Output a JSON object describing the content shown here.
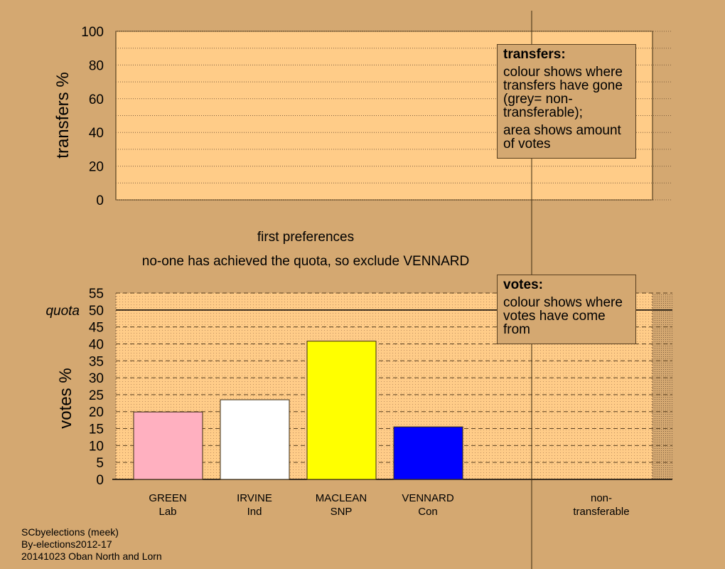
{
  "chart_data": [
    {
      "type": "bar",
      "ylabel": "transfers %",
      "ylim": [
        0,
        100
      ],
      "yticks": [
        0,
        20,
        40,
        60,
        80,
        100
      ],
      "categories": [],
      "values": []
    },
    {
      "type": "bar",
      "ylabel": "votes %",
      "ylim": [
        0,
        55
      ],
      "yticks": [
        0,
        5,
        10,
        15,
        20,
        25,
        30,
        35,
        40,
        45,
        50,
        55
      ],
      "quota": 50,
      "quota_label": "quota",
      "categories": [
        "GREEN\nLab",
        "IRVINE\nInd",
        "MACLEAN\nSNP",
        "VENNARD\nCon"
      ],
      "category_names": [
        "GREEN",
        "IRVINE",
        "MACLEAN",
        "VENNARD"
      ],
      "category_parties": [
        "Lab",
        "Ind",
        "SNP",
        "Con"
      ],
      "values": [
        19.9,
        23.5,
        40.8,
        15.5
      ],
      "colors": [
        "#ffb0c0",
        "#ffffff",
        "#ffff00",
        "#0000ff"
      ],
      "nontransferable_label": [
        "non-",
        "transferable"
      ]
    }
  ],
  "stage_title": "first preferences",
  "stage_note": "no-one has achieved the quota, so exclude VENNARD",
  "legend_transfers": {
    "title": "transfers:",
    "line1": "colour shows where transfers have gone (grey= non-transferable);",
    "line2": "area shows amount of votes"
  },
  "legend_votes": {
    "title": "votes:",
    "line1": "colour shows where votes have come from"
  },
  "footer": [
    "SCbyelections (meek)",
    "By-elections2012-17",
    "20141023 Oban North and Lorn"
  ],
  "colors": {
    "background": "#d4a871",
    "plot": "#ffcc88"
  }
}
